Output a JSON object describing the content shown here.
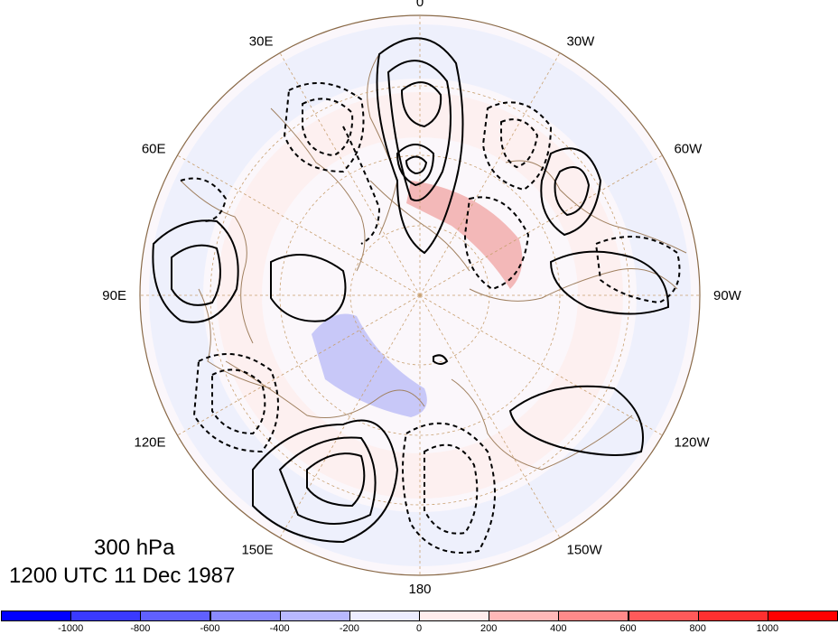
{
  "title": {
    "level": "300 hPa",
    "datetime": "1200 UTC 11 Dec 1987"
  },
  "longitude_labels": [
    {
      "lon": 0,
      "text": "0"
    },
    {
      "lon": -30,
      "text": "30W"
    },
    {
      "lon": -60,
      "text": "60W"
    },
    {
      "lon": -90,
      "text": "90W"
    },
    {
      "lon": -120,
      "text": "120W"
    },
    {
      "lon": -150,
      "text": "150W"
    },
    {
      "lon": 180,
      "text": "180"
    },
    {
      "lon": 150,
      "text": "150E"
    },
    {
      "lon": 120,
      "text": "120E"
    },
    {
      "lon": 90,
      "text": "90E"
    },
    {
      "lon": 60,
      "text": "60E"
    },
    {
      "lon": 30,
      "text": "30E"
    }
  ],
  "map_style": {
    "projection": "north polar stereographic",
    "coastline_color": "#a08060",
    "grid_color": "#c8a070",
    "positive_contour": "solid black",
    "negative_contour": "dashed black"
  },
  "colorbar": {
    "labels": [
      "-1000",
      "-800",
      "-600",
      "-400",
      "-200",
      "0",
      "200",
      "400",
      "600",
      "800",
      "1000"
    ],
    "colors": [
      "#0000ff",
      "#3a3aff",
      "#6060ff",
      "#8a8aff",
      "#b8b8ff",
      "#ececff",
      "#ffecec",
      "#ffb8b8",
      "#ff8a8a",
      "#ff5a5a",
      "#ff3030",
      "#ff0000"
    ]
  }
}
